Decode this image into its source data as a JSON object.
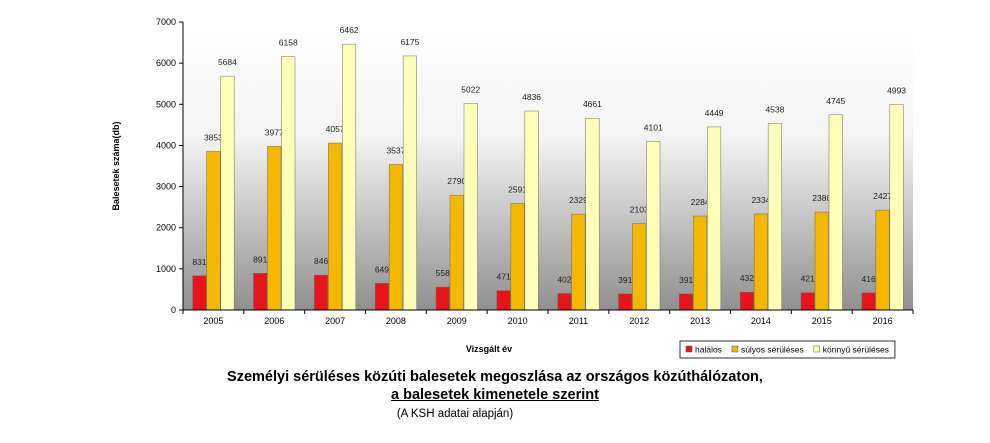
{
  "chart_data": {
    "type": "bar",
    "ylabel": "Balesetek száma(db)",
    "xlabel": "Vizsgált év",
    "ylim": [
      0,
      7000
    ],
    "yticks": [
      0,
      1000,
      2000,
      3000,
      4000,
      5000,
      6000,
      7000
    ],
    "grid": false,
    "legend_position": "bottom-right",
    "categories": [
      "2005",
      "2006",
      "2007",
      "2008",
      "2009",
      "2010",
      "2011",
      "2012",
      "2013",
      "2014",
      "2015",
      "2016"
    ],
    "series": [
      {
        "name": "halálos",
        "color": "#e8141b",
        "values": [
          831,
          891,
          846,
          649,
          558,
          471,
          402,
          391,
          391,
          432,
          421,
          416
        ]
      },
      {
        "name": "súlyos sérüléses",
        "color": "#f5b800",
        "values": [
          3853,
          3977,
          4057,
          3537,
          2790,
          2591,
          2329,
          2103,
          2284,
          2334,
          2380,
          2427
        ]
      },
      {
        "name": "könnyű sérüléses",
        "color": "#ffffb8",
        "values": [
          5684,
          6158,
          6462,
          6175,
          5022,
          4836,
          4661,
          4101,
          4449,
          4538,
          4745,
          4993
        ]
      }
    ]
  },
  "caption": {
    "line1": "Személyi sérüléses közúti balesetek megoszlása az országos közúthálózaton,",
    "line2": "a balesetek kimenetele szerint",
    "source": "(A KSH adatai alapján)"
  }
}
